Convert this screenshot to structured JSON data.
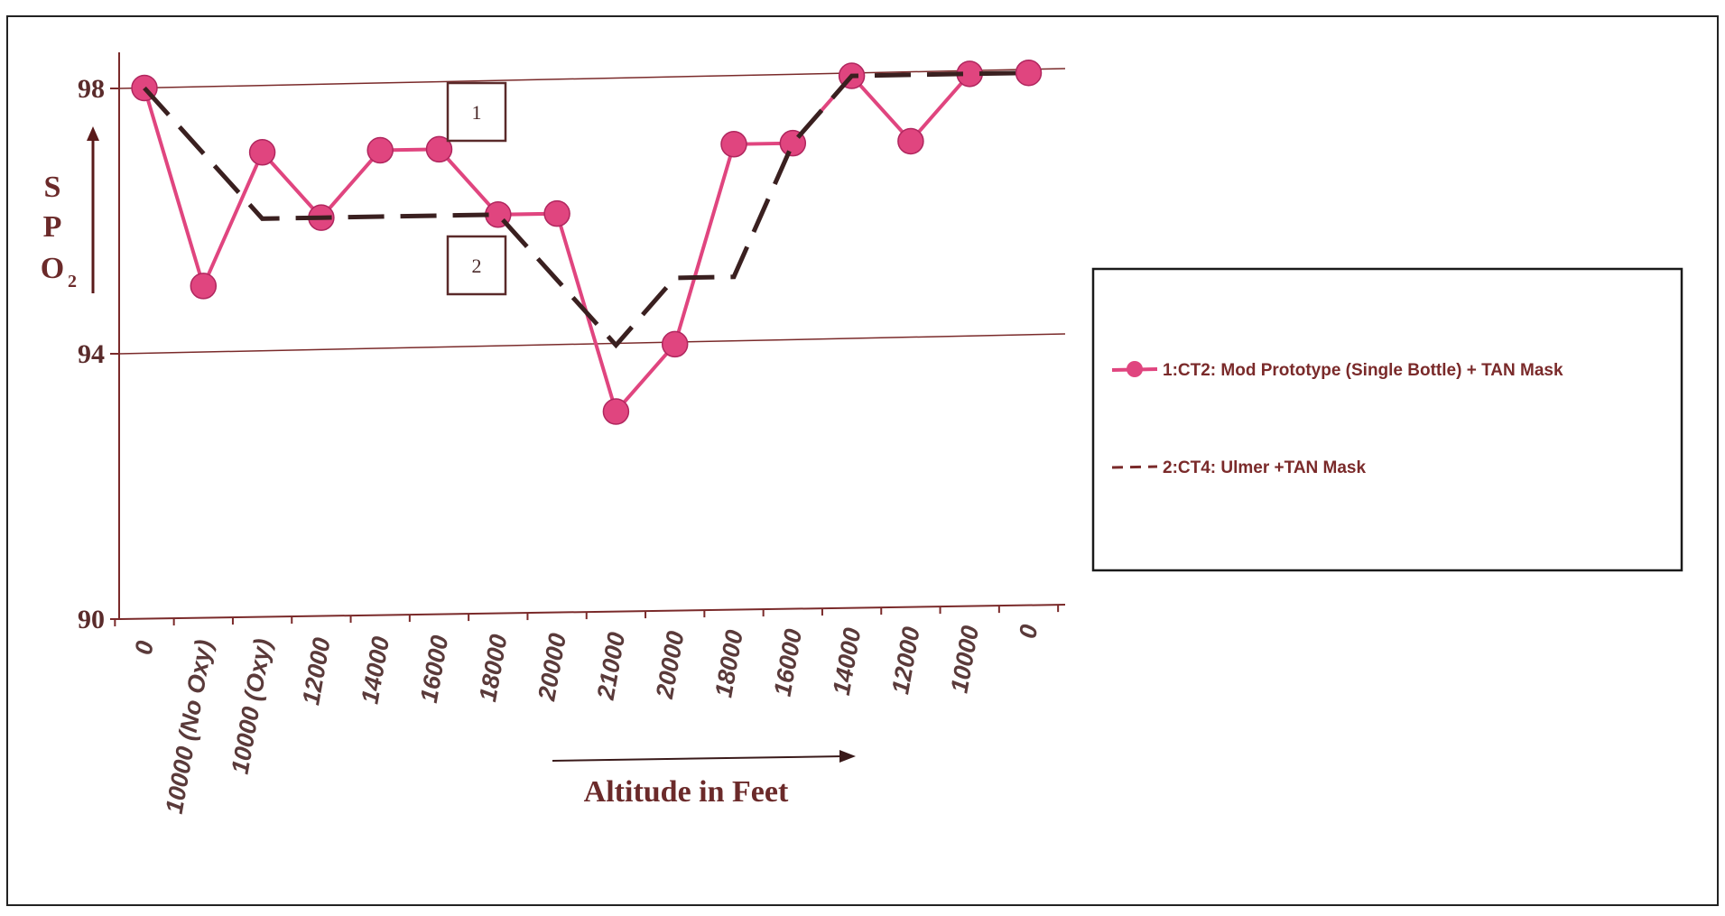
{
  "chart_data": {
    "type": "line",
    "title": "",
    "xlabel": "Altitude in Feet",
    "ylabel_letters": [
      "S",
      "P",
      "O"
    ],
    "ylabel_subscript": "2",
    "ylim": [
      90,
      98
    ],
    "yticks": [
      {
        "value": 90,
        "label": "90"
      },
      {
        "value": 94,
        "label": "94"
      },
      {
        "value": 98,
        "label": "98"
      }
    ],
    "categories": [
      "0",
      "10000 (No Oxy)",
      "10000 (Oxy)",
      "12000",
      "14000",
      "16000",
      "18000",
      "20000",
      "21000",
      "20000",
      "18000",
      "16000",
      "14000",
      "12000",
      "10000",
      "0"
    ],
    "grid": "horizontal",
    "legend_position": "right",
    "series": [
      {
        "name": "1:CT2: Mod Prototype (Single Bottle) + TAN Mask",
        "values": [
          98,
          95,
          97,
          96,
          97,
          97,
          96,
          96,
          93,
          94,
          97,
          97,
          98,
          97,
          98,
          98
        ],
        "color": "#e0457f",
        "style": "solid-marker"
      },
      {
        "name": "2:CT4: Ulmer +TAN Mask",
        "values": [
          98,
          97,
          96,
          96,
          96,
          96,
          96,
          95,
          94,
          95,
          95,
          97,
          98,
          98,
          98,
          98
        ],
        "color": "#3a2020",
        "style": "dashed"
      }
    ],
    "annotations": [
      {
        "label": "1",
        "series": 1
      },
      {
        "label": "2",
        "series": 2
      }
    ]
  }
}
